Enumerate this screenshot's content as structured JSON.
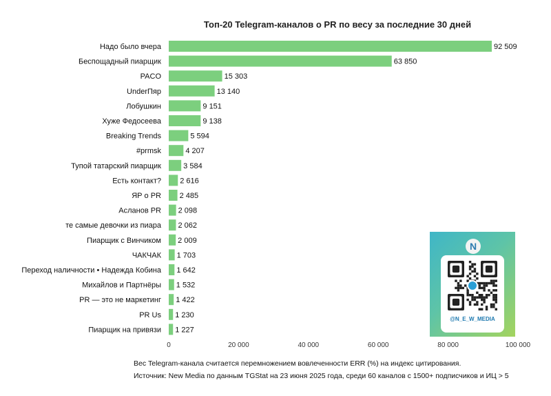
{
  "title": "Топ-20 Telegram-каналов о PR по весу за последние 30 дней",
  "chart_data": {
    "type": "bar",
    "orientation": "horizontal",
    "title": "Топ-20 Telegram-каналов о PR по весу за последние 30 дней",
    "categories": [
      "Надо было вчера",
      "Беспощадный пиарщик",
      "PACO",
      "UnderПяр",
      "Лобушкин",
      "Хуже Федосеева",
      "Breaking Trends",
      "#prmsk",
      "Тупой татарский пиарщик",
      "Есть контакт?",
      "ЯР о PR",
      "Асланов PR",
      "те самые девочки из пиара",
      "Пиарщик с Винчиком",
      "ЧАКЧАК",
      "Переход наличности • Надежда Кобина",
      "Михайлов и Партнёры",
      "PR — это не маркетинг",
      "PR Us",
      "Пиарщик на привязи"
    ],
    "values": [
      92509,
      63850,
      15303,
      13140,
      9151,
      9138,
      5594,
      4207,
      3584,
      2616,
      2485,
      2098,
      2062,
      2009,
      1703,
      1642,
      1532,
      1422,
      1230,
      1227
    ],
    "value_labels": [
      "92 509",
      "63 850",
      "15 303",
      "13 140",
      "9 151",
      "9 138",
      "5 594",
      "4 207",
      "3 584",
      "2 616",
      "2 485",
      "2 098",
      "2 062",
      "2 009",
      "1 703",
      "1 642",
      "1 532",
      "1 422",
      "1 230",
      "1 227"
    ],
    "xlim": [
      0,
      100000
    ],
    "xticks": [
      0,
      20000,
      40000,
      60000,
      80000,
      100000
    ],
    "xtick_labels": [
      "0",
      "20 000",
      "40 000",
      "60 000",
      "80 000",
      "100 000"
    ],
    "bar_color": "#7ccf7e",
    "grid": false,
    "xlabel": "",
    "ylabel": ""
  },
  "notes": {
    "line1": "Вес Telegram-канала считается перемножением вовлеченности ERR (%) на индекс цитирования.",
    "line2": "Источник: New Media по данным TGStat на 23 июня 2025 года, среди 60 каналов с 1500+ подписчиков и ИЦ > 5"
  },
  "qr": {
    "logo_text": "N",
    "handle": "@N_E_W_MEDIA",
    "icon": "qr-code-icon"
  }
}
